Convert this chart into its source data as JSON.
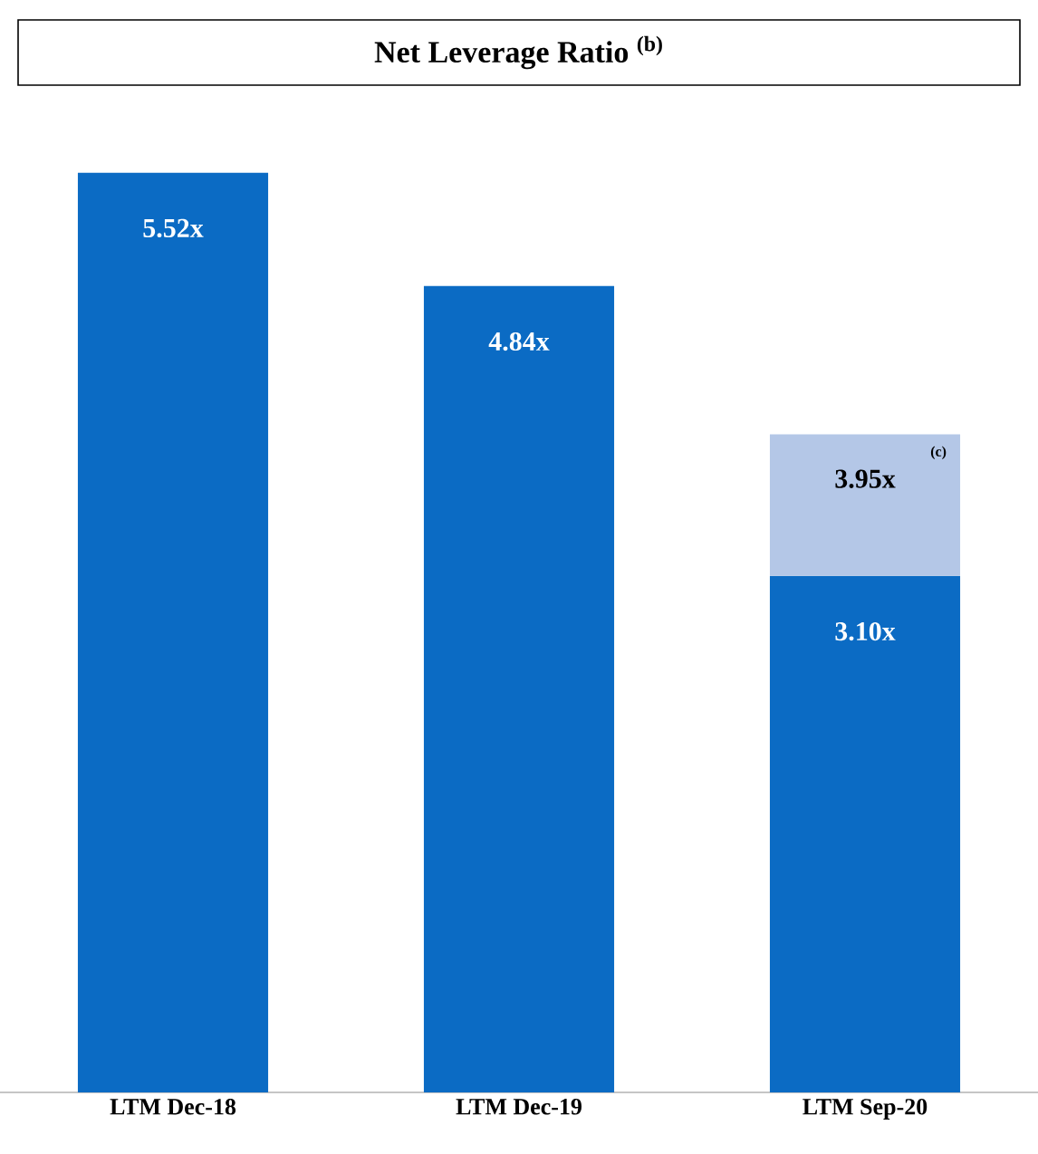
{
  "chart_data": {
    "type": "bar",
    "title": "Net Leverage Ratio $^{(b)}$",
    "stacked": true,
    "categories": [
      "LTM Dec-18",
      "LTM Dec-19",
      "LTM Sep-20"
    ],
    "series": [
      {
        "color": "#0b6bc4",
        "values": [
          5.52,
          4.84,
          3.1
        ],
        "value_labels": [
          "5.52x",
          "4.84x",
          "3.10x"
        ]
      },
      {
        "color": "#b4c7e7",
        "values": [
          null,
          null,
          0.85
        ]
      }
    ],
    "annotations": [
      "(c)",
      {
        "text": "3.95x",
        "x": "LTM Sep-20",
        "y": 3.95
      }
    ]
  }
}
